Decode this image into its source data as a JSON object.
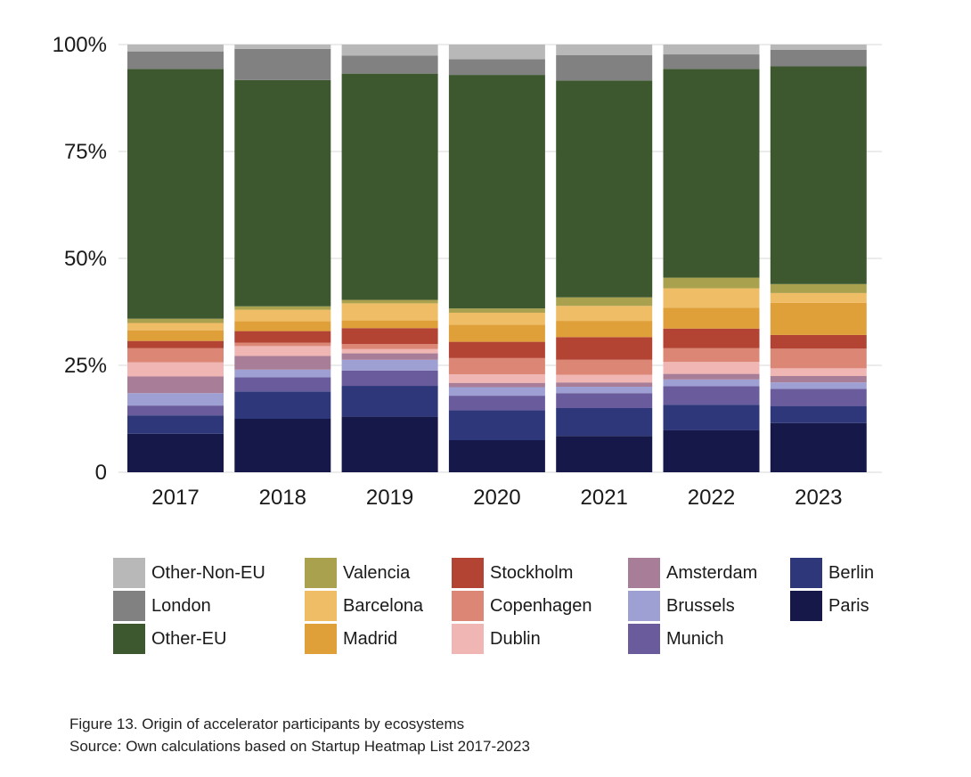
{
  "chart_data": {
    "type": "bar",
    "stacked": true,
    "categories": [
      "2017",
      "2018",
      "2019",
      "2020",
      "2021",
      "2022",
      "2023"
    ],
    "ylim": [
      0,
      100
    ],
    "yticks": [
      {
        "value": 0,
        "label": "0"
      },
      {
        "value": 25,
        "label": "25%"
      },
      {
        "value": 50,
        "label": "50%"
      },
      {
        "value": 75,
        "label": "75%"
      },
      {
        "value": 100,
        "label": "100%"
      }
    ],
    "grid": true,
    "legend_position": "bottom",
    "series": [
      {
        "name": "Paris",
        "color": "#17184a",
        "values": [
          9,
          12.5,
          13,
          7.5,
          8.5,
          9.8,
          11.5
        ]
      },
      {
        "name": "Berlin",
        "color": "#2e3779",
        "values": [
          4.3,
          6.4,
          7.2,
          7,
          6.5,
          6,
          4
        ]
      },
      {
        "name": "Munich",
        "color": "#6a5b9c",
        "values": [
          2.3,
          3.3,
          3.6,
          3.4,
          3.5,
          4.3,
          4
        ]
      },
      {
        "name": "Brussels",
        "color": "#9e9fd3",
        "values": [
          2.9,
          1.8,
          2.5,
          2,
          1.5,
          1.6,
          1.5
        ]
      },
      {
        "name": "Amsterdam",
        "color": "#a87d97",
        "values": [
          3.9,
          3.2,
          1.5,
          1,
          1,
          1.3,
          1.5
        ]
      },
      {
        "name": "Dublin",
        "color": "#efb6b3",
        "values": [
          3.3,
          2.3,
          1,
          2,
          1.8,
          2.8,
          1.8
        ]
      },
      {
        "name": "Copenhagen",
        "color": "#dc8776",
        "values": [
          3.3,
          0.8,
          1.2,
          3.8,
          3.5,
          3.2,
          4.6
        ]
      },
      {
        "name": "Stockholm",
        "color": "#b34333",
        "values": [
          1.7,
          2.7,
          3.7,
          3.8,
          5.3,
          4.6,
          3.2
        ]
      },
      {
        "name": "Madrid",
        "color": "#dfa03a",
        "values": [
          2.5,
          2.3,
          1.8,
          4,
          3.8,
          4.9,
          7.5
        ]
      },
      {
        "name": "Barcelona",
        "color": "#f0bd67",
        "values": [
          1.7,
          2.7,
          4,
          2.8,
          3.5,
          4.5,
          2.3
        ]
      },
      {
        "name": "Valencia",
        "color": "#aaa14e",
        "values": [
          1,
          0.8,
          0.8,
          1,
          2,
          2.5,
          2.1
        ]
      },
      {
        "name": "Other-EU",
        "color": "#3d582e",
        "values": [
          58.4,
          52.9,
          52.9,
          54.6,
          50.7,
          48.8,
          50.9
        ]
      },
      {
        "name": "London",
        "color": "#818181",
        "values": [
          4.1,
          7.3,
          4.2,
          3.7,
          5.9,
          3.4,
          3.9
        ]
      },
      {
        "name": "Other-Non-EU",
        "color": "#b8b8b8",
        "values": [
          1.6,
          1,
          2.6,
          3.4,
          2.5,
          2.3,
          1.2
        ]
      }
    ],
    "legend_columns": [
      [
        "Other-Non-EU",
        "London",
        "Other-EU"
      ],
      [
        "Valencia",
        "Barcelona",
        "Madrid"
      ],
      [
        "Stockholm",
        "Copenhagen",
        "Dublin"
      ],
      [
        "Amsterdam",
        "Brussels",
        "Munich"
      ],
      [
        "Berlin",
        "Paris"
      ]
    ]
  },
  "caption": {
    "figure": "Figure 13. Origin of accelerator participants by ecosystems",
    "source": "Source: Own calculations based on Startup Heatmap List 2017-2023"
  }
}
